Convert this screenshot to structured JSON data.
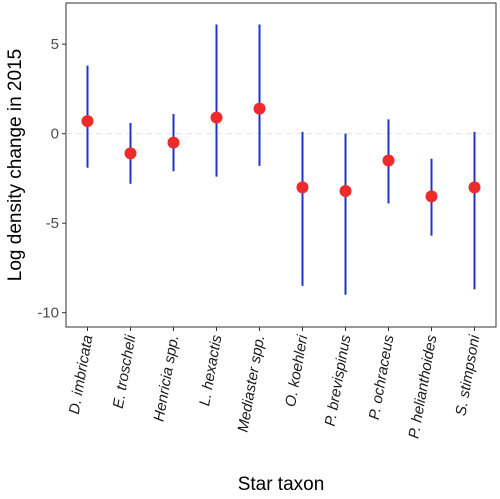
{
  "chart_data": {
    "type": "scatter",
    "xlabel": "Star taxon",
    "ylabel": "Log density change in 2015",
    "ylim": [
      -10.8,
      7.3
    ],
    "yticks": [
      5,
      0,
      -5,
      -10
    ],
    "ytick_labels": [
      "5",
      "0",
      "-5",
      "-10"
    ],
    "reference_line": 0,
    "categories": [
      "D. imbricata",
      "E. troscheli",
      "Henricia spp.",
      "L. hexactis",
      "Mediaster spp.",
      "O. koehleri",
      "P. brevispinus",
      "P. ochraceus",
      "P. helianthoides",
      "S. stimpsoni"
    ],
    "values": [
      0.7,
      -1.1,
      -0.5,
      0.9,
      1.4,
      -3.0,
      -3.2,
      -1.5,
      -3.5,
      -3.0
    ],
    "lower": [
      -1.9,
      -2.8,
      -2.1,
      -2.4,
      -1.8,
      -8.5,
      -9.0,
      -3.9,
      -5.7,
      -8.7
    ],
    "upper": [
      3.8,
      0.6,
      1.1,
      6.1,
      6.1,
      0.1,
      0.0,
      0.8,
      -1.4,
      0.1
    ],
    "point_color": "#ee2b2b",
    "error_bar_color": "#2233cc",
    "reference_line_color": "#e3e3e3",
    "grid": false
  }
}
